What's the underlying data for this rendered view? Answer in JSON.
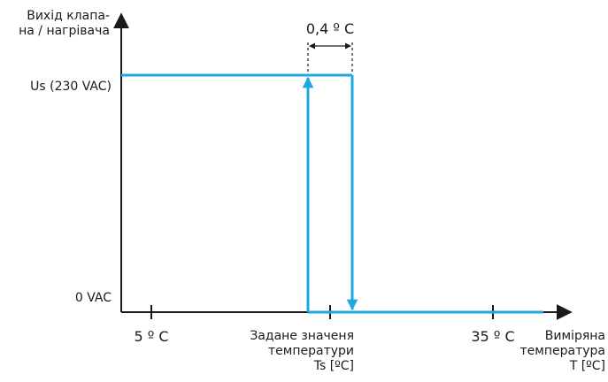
{
  "y_axis": {
    "title_line1": "Вихід клапа-",
    "title_line2": "на / нагрівача",
    "label_high": "Us (230 VAC)",
    "label_low": "0 VAC"
  },
  "x_axis": {
    "tick_left": "5 º C",
    "tick_right": "35 º C",
    "setpoint_line1": "Задане значеня",
    "setpoint_line2": "температури",
    "setpoint_line3": "Ts [ºC]",
    "title_line1": "Виміряна",
    "title_line2": "температура",
    "title_line3": "T [ºC]"
  },
  "hysteresis": {
    "label": "0,4 º C"
  },
  "colors": {
    "signal": "#1ea7e1",
    "axis": "#1a1a1a"
  }
}
